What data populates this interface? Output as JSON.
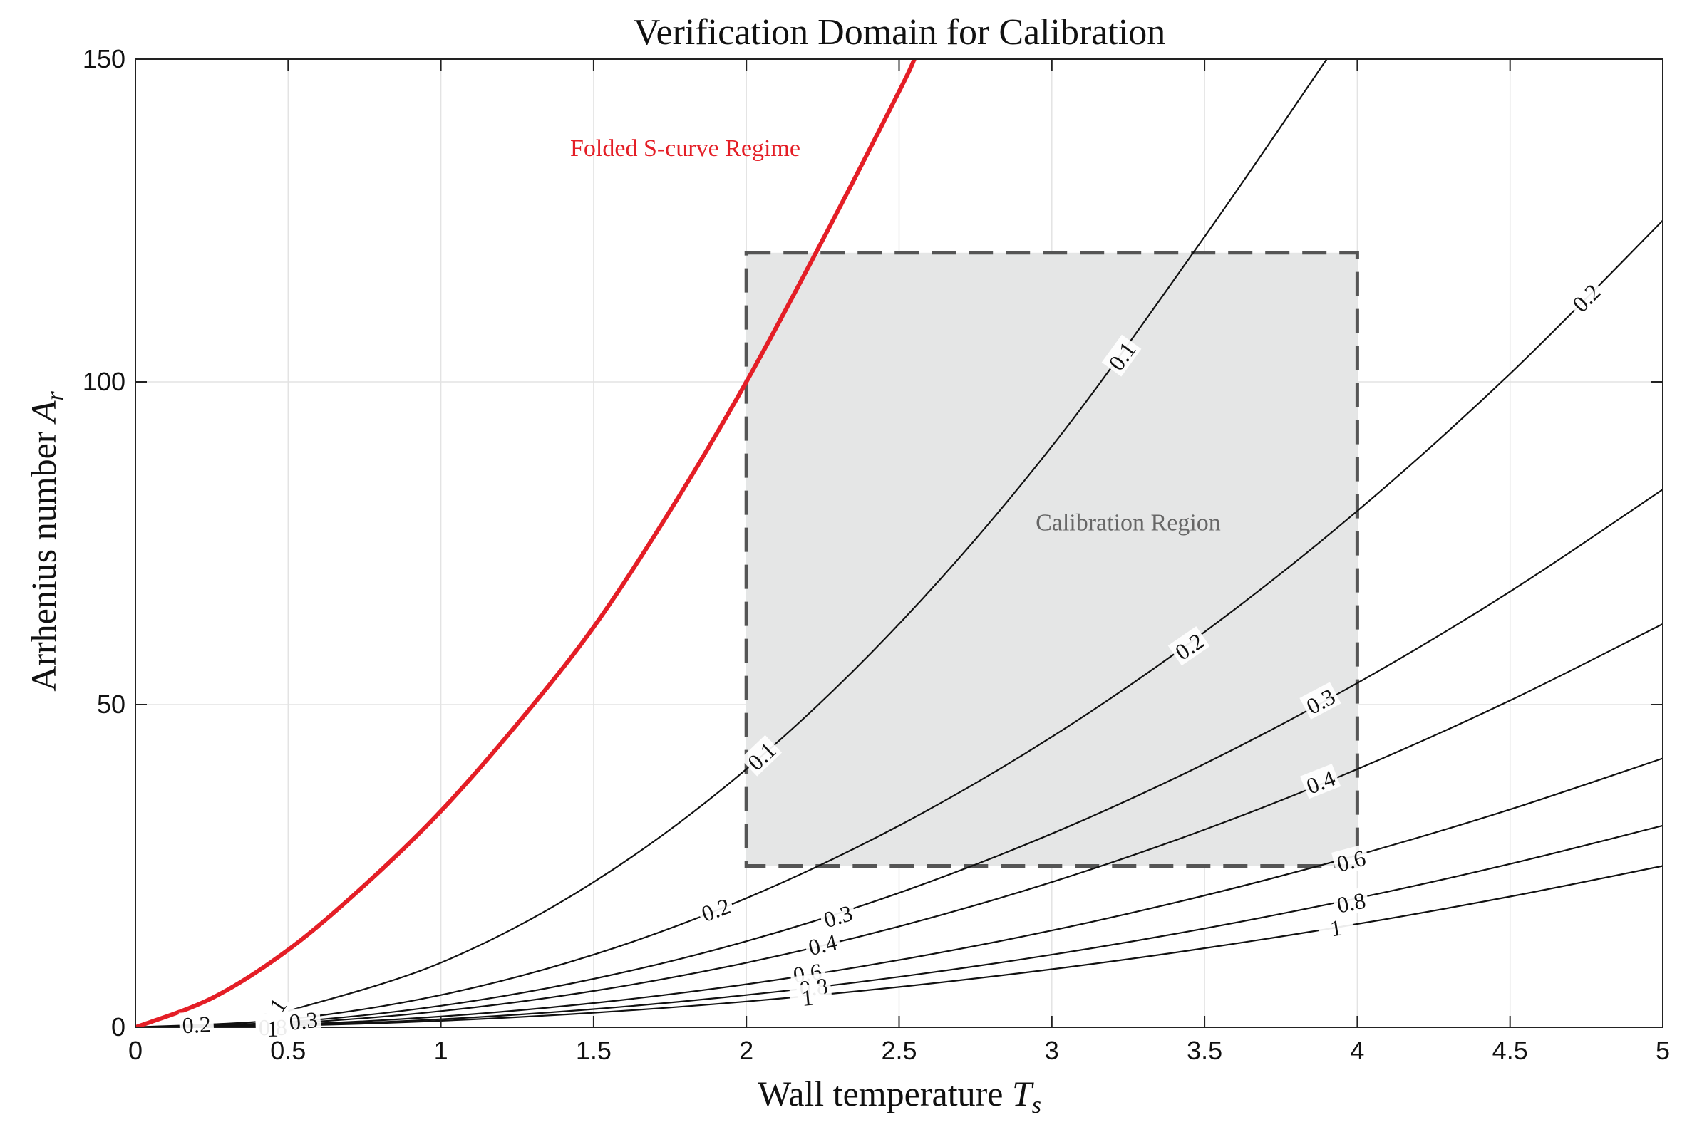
{
  "chart_data": {
    "type": "line",
    "title": "Verification Domain for Calibration",
    "xlabel": "Wall temperature",
    "xlabel_symbol": "T",
    "xlabel_sub": "s",
    "ylabel": "Arrhenius number",
    "ylabel_symbol": "A",
    "ylabel_sub": "r",
    "xlim": [
      0,
      5
    ],
    "ylim": [
      0,
      150
    ],
    "xticks": [
      0,
      0.5,
      1,
      1.5,
      2,
      2.5,
      3,
      3.5,
      4,
      4.5,
      5
    ],
    "xtick_labels": [
      "0",
      "0.5",
      "1",
      "1.5",
      "2",
      "2.5",
      "3",
      "3.5",
      "4",
      "4.5",
      "5"
    ],
    "yticks": [
      0,
      50,
      100,
      150
    ],
    "ytick_labels": [
      "0",
      "50",
      "100",
      "150"
    ],
    "grid": true,
    "colors": {
      "boundary": "#e41e26",
      "contour": "#111111",
      "region_fill": "#e5e6e6",
      "region_edge": "#555555"
    },
    "boundary": {
      "label": "Folded S-curve Regime",
      "label_at": [
        1.8,
        135
      ],
      "x": [
        0,
        0.25,
        0.5,
        0.75,
        1.0,
        1.25,
        1.5,
        1.75,
        2.0,
        2.25,
        2.5,
        2.55
      ],
      "y": [
        0,
        4.5,
        12,
        22,
        33.5,
        47,
        62,
        80,
        100,
        122,
        145,
        150
      ]
    },
    "region": {
      "label": "Calibration Region",
      "label_at": [
        3.25,
        77
      ],
      "x": [
        2,
        4
      ],
      "y": [
        25,
        120
      ]
    },
    "contours": [
      {
        "level": "0.1",
        "x": [
          0.5,
          1.0,
          1.5,
          2.0,
          2.5,
          3.0,
          3.5,
          3.9
        ],
        "y": [
          2.5,
          10,
          22.5,
          40,
          62.5,
          90,
          122.5,
          150
        ],
        "labels": [
          [
            0.45,
            2.3
          ],
          [
            2.05,
            42
          ],
          [
            3.23,
            104
          ]
        ]
      },
      {
        "level": "0.2",
        "x": [
          0,
          0.5,
          1.0,
          1.5,
          2.0,
          2.5,
          3.0,
          3.5,
          4.0,
          4.5,
          5.0
        ],
        "y": [
          0,
          1.25,
          5,
          11.25,
          20,
          31.25,
          45,
          61.25,
          80,
          101.25,
          125
        ],
        "labels": [
          [
            0.2,
            0.4
          ],
          [
            1.9,
            18.2
          ],
          [
            3.45,
            59
          ],
          [
            4.75,
            113
          ]
        ]
      },
      {
        "level": "0.3",
        "x": [
          0,
          0.5,
          1.0,
          1.5,
          2.0,
          2.5,
          3.0,
          3.5,
          4.0,
          4.5,
          5.0
        ],
        "y": [
          0,
          0.83,
          3.33,
          7.5,
          13.33,
          20.83,
          30,
          40.83,
          53.33,
          67.5,
          83.33
        ],
        "labels": [
          [
            0.55,
            1.0
          ],
          [
            2.3,
            17.2
          ],
          [
            3.88,
            50.5
          ]
        ]
      },
      {
        "level": "0.4",
        "x": [
          0,
          0.5,
          1.0,
          1.5,
          2.0,
          2.5,
          3.0,
          3.5,
          4.0,
          4.5,
          5.0
        ],
        "y": [
          0,
          0.63,
          2.5,
          5.63,
          10,
          15.63,
          22.5,
          30.63,
          40,
          50.63,
          62.5
        ],
        "labels": [
          [
            0.45,
            0.3
          ],
          [
            2.25,
            12.8
          ],
          [
            3.88,
            38
          ]
        ]
      },
      {
        "level": "0.6",
        "x": [
          0,
          0.5,
          1.0,
          1.5,
          2.0,
          2.5,
          3.0,
          3.5,
          4.0,
          4.5,
          5.0
        ],
        "y": [
          0,
          0.42,
          1.67,
          3.75,
          6.67,
          10.42,
          15,
          20.42,
          26.67,
          33.75,
          41.67
        ],
        "labels": [
          [
            0.45,
            0.1
          ],
          [
            2.2,
            8.4
          ],
          [
            3.98,
            25.8
          ]
        ]
      },
      {
        "level": "0.8",
        "x": [
          0,
          0.5,
          1.0,
          1.5,
          2.0,
          2.5,
          3.0,
          3.5,
          4.0,
          4.5,
          5.0
        ],
        "y": [
          0,
          0.31,
          1.25,
          2.81,
          5,
          7.81,
          11.25,
          15.31,
          20,
          25.31,
          31.25
        ],
        "labels": [
          [
            0.45,
            0
          ],
          [
            2.22,
            6.2
          ],
          [
            3.98,
            19.3
          ]
        ]
      },
      {
        "level": "1",
        "x": [
          0,
          0.5,
          1.0,
          1.5,
          2.0,
          2.5,
          3.0,
          3.5,
          4.0,
          4.5,
          5.0
        ],
        "y": [
          0,
          0.25,
          1,
          2.25,
          4,
          6.25,
          9,
          12.25,
          16,
          20.25,
          25
        ],
        "labels": [
          [
            0.45,
            -0.2
          ],
          [
            2.2,
            4.6
          ],
          [
            3.93,
            15.4
          ]
        ]
      }
    ]
  }
}
